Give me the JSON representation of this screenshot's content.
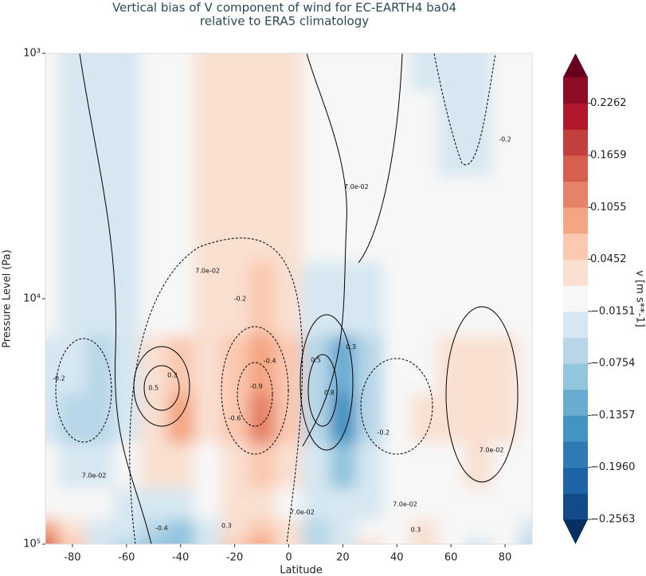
{
  "chart_data": {
    "type": "contourf",
    "title": "Vertical bias of V component of wind for EC-EARTH4 ba04",
    "subtitle": "relative to ERA5 climatology",
    "x_label": "Latitude",
    "y_label": "Pressure Level (Pa)",
    "xlim": [
      -90,
      90
    ],
    "xticks": [
      -80,
      -60,
      -40,
      -20,
      0,
      20,
      40,
      60,
      80
    ],
    "ylim": [
      100000,
      1000
    ],
    "y_log": true,
    "yticks": [
      {
        "value": 100000,
        "label": "10⁵"
      },
      {
        "value": 10000,
        "label": "10⁴"
      },
      {
        "value": 1000,
        "label": "10³"
      }
    ],
    "field": {
      "lat": [
        -90,
        -80,
        -70,
        -60,
        -50,
        -40,
        -30,
        -20,
        -10,
        0,
        10,
        20,
        30,
        40,
        50,
        60,
        70,
        80,
        90
      ],
      "p": [
        1000,
        2000,
        5000,
        10000,
        20000,
        30000,
        50000,
        70000,
        90000,
        100000
      ],
      "values": [
        [
          0,
          -0.02,
          -0.03,
          -0.03,
          -0.01,
          0.01,
          0.02,
          0.03,
          0.03,
          0.02,
          0.01,
          0,
          0,
          -0.01,
          -0.02,
          -0.02,
          -0.02,
          -0.01,
          0
        ],
        [
          0,
          -0.02,
          -0.03,
          -0.03,
          -0.01,
          0.01,
          0.02,
          0.03,
          0.03,
          0.02,
          0.01,
          0,
          0,
          0,
          -0.01,
          -0.02,
          -0.02,
          -0.01,
          0
        ],
        [
          0,
          -0.03,
          -0.04,
          -0.03,
          -0.01,
          0,
          0.02,
          0.03,
          0.03,
          0.02,
          0,
          0,
          0,
          0,
          0,
          -0.01,
          -0.01,
          0,
          0
        ],
        [
          0,
          -0.02,
          -0.03,
          -0.02,
          0,
          0,
          0.02,
          0.04,
          0.05,
          0.03,
          -0.02,
          -0.04,
          -0.03,
          0,
          0,
          0,
          0,
          0,
          0
        ],
        [
          -0.02,
          -0.04,
          -0.05,
          -0.02,
          0.03,
          0.06,
          0.02,
          0.05,
          0.09,
          0.05,
          -0.05,
          -0.12,
          -0.06,
          0,
          0.01,
          0.02,
          0.03,
          0.02,
          0
        ],
        [
          -0.02,
          -0.05,
          -0.06,
          -0.02,
          0.04,
          0.08,
          0.03,
          0.06,
          0.12,
          0.06,
          -0.06,
          -0.14,
          -0.07,
          0,
          0.03,
          0.02,
          0.03,
          0.03,
          0
        ],
        [
          -0.01,
          -0.03,
          -0.03,
          -0.01,
          0.02,
          0.03,
          0.01,
          0.03,
          0.06,
          0.03,
          -0.04,
          -0.08,
          -0.04,
          0,
          0.01,
          0.01,
          0.02,
          0.01,
          0
        ],
        [
          0,
          -0.01,
          -0.01,
          -0.03,
          -0.03,
          -0.02,
          0,
          0.02,
          0.03,
          0.01,
          -0.03,
          -0.04,
          -0.02,
          0,
          0,
          0,
          0,
          0,
          0
        ],
        [
          0.08,
          0.02,
          -0.02,
          -0.04,
          -0.06,
          -0.08,
          -0.03,
          0.04,
          0.05,
          0.02,
          -0.05,
          -0.03,
          0.01,
          0,
          0.02,
          0.01,
          -0.01,
          0,
          -0.02
        ],
        [
          0.15,
          0.05,
          -0.03,
          -0.05,
          -0.08,
          -0.1,
          -0.02,
          0.06,
          0.08,
          0.03,
          -0.05,
          -0.02,
          0.02,
          0,
          0.03,
          0.01,
          -0.02,
          -0.01,
          -0.05
        ]
      ]
    },
    "annotations": [
      {
        "text": "-0.2",
        "lat": -85,
        "p": 21100
      },
      {
        "text": "0.3",
        "lat": -43,
        "p": 20500
      },
      {
        "text": "0.5",
        "lat": -50,
        "p": 23100
      },
      {
        "text": "-0.9",
        "lat": -12,
        "p": 22800
      },
      {
        "text": "-0.6",
        "lat": -20,
        "p": 30700
      },
      {
        "text": "-0.4",
        "lat": -7,
        "p": 17900
      },
      {
        "text": "-0.2",
        "lat": -18,
        "p": 10000
      },
      {
        "text": "0.5",
        "lat": 10,
        "p": 17800
      },
      {
        "text": "0.8",
        "lat": 15,
        "p": 24200
      },
      {
        "text": "0.3",
        "lat": 23,
        "p": 15700
      },
      {
        "text": "7.0e-02",
        "lat": -30,
        "p": 7700
      },
      {
        "text": "7.0e-02",
        "lat": 25,
        "p": 3500
      },
      {
        "text": "-0.2",
        "lat": 80,
        "p": 2240
      },
      {
        "text": "-0.2",
        "lat": 35,
        "p": 35100
      },
      {
        "text": "7.0e-02",
        "lat": 75,
        "p": 41400
      },
      {
        "text": "7.0e-02",
        "lat": -72,
        "p": 52600
      },
      {
        "text": "7.0e-02",
        "lat": 5,
        "p": 74200
      },
      {
        "text": "7.0e-02",
        "lat": 43,
        "p": 68800
      },
      {
        "text": "0.3",
        "lat": 47,
        "p": 87500
      },
      {
        "text": "-0.4",
        "lat": -47,
        "p": 86100
      },
      {
        "text": "0.3",
        "lat": -23,
        "p": 84200
      }
    ],
    "colorbar": {
      "label": "v [m s**-1]",
      "clim": [
        -0.2563,
        0.2564
      ],
      "ticks": [
        {
          "value": -0.2563,
          "label": "−0.2563"
        },
        {
          "value": -0.196,
          "label": "−0.1960"
        },
        {
          "value": -0.1357,
          "label": "−0.1357"
        },
        {
          "value": -0.0754,
          "label": "−0.0754"
        },
        {
          "value": -0.0151,
          "label": "−0.0151"
        },
        0.0452,
        0.1055,
        0.1659,
        0.2262
      ],
      "colors": [
        "#134b87",
        "#1f63a8",
        "#2f79b5",
        "#4393c3",
        "#6aabd1",
        "#92c5de",
        "#b7d7e8",
        "#d6e7f1",
        "#f7f7f7",
        "#f9e0d1",
        "#fbc8b0",
        "#f4a582",
        "#e58267",
        "#d6604d",
        "#c33f3e",
        "#b2182b",
        "#8e0c25"
      ],
      "under_color": "#053061",
      "over_color": "#67001f"
    }
  }
}
